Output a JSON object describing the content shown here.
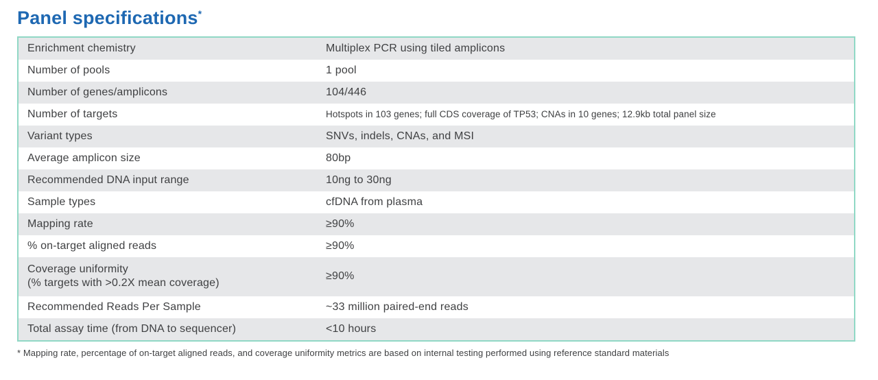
{
  "page": {
    "title": "Panel specifications",
    "title_superscript": "*",
    "footnote": "* Mapping rate, percentage of on-target aligned reads, and coverage uniformity metrics are based on internal testing performed using reference standard materials"
  },
  "colors": {
    "title_blue": "#1e68b2",
    "table_border_teal": "#90d8c5",
    "row_gray": "#e6e7e9",
    "text_dark_gray": "#3f4042"
  },
  "table": {
    "rows": [
      {
        "label": "Enrichment chemistry",
        "value": "Multiplex PCR using tiled amplicons"
      },
      {
        "label": "Number of pools",
        "value": "1 pool"
      },
      {
        "label": "Number of genes/amplicons",
        "value": "104/446"
      },
      {
        "label": "Number of targets",
        "value": "Hotspots in 103 genes; full CDS coverage of TP53; CNAs in 10 genes; 12.9kb total panel size",
        "small_value": true
      },
      {
        "label": "Variant types",
        "value": "SNVs, indels, CNAs, and MSI"
      },
      {
        "label": "Average amplicon size",
        "value": "80bp"
      },
      {
        "label": "Recommended DNA input range",
        "value": "10ng to 30ng"
      },
      {
        "label": "Sample types",
        "value": "cfDNA from plasma"
      },
      {
        "label": "Mapping rate",
        "value": "≥90%"
      },
      {
        "label": "% on-target aligned reads",
        "value": "≥90%"
      },
      {
        "label": "Coverage uniformity",
        "label_line2": "(% targets with >0.2X mean coverage)",
        "value": "≥90%",
        "tall": true
      },
      {
        "label": "Recommended Reads Per Sample",
        "value": "~33 million paired-end reads"
      },
      {
        "label": "Total assay time (from DNA to sequencer)",
        "value": "<10 hours"
      }
    ]
  }
}
